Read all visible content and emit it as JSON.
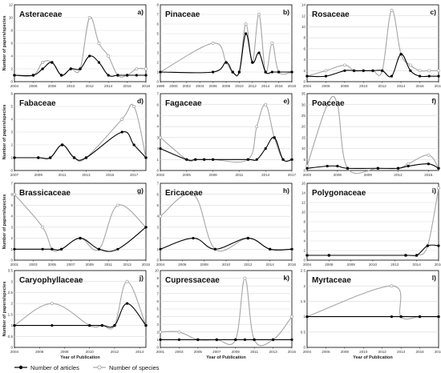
{
  "figure": {
    "xlabel": "Year of Publication",
    "ylabel": "Number of papers/species",
    "series_styles": [
      {
        "key": "articles",
        "name": "Number of articles",
        "color": "#000000",
        "marker": "filled-circle"
      },
      {
        "key": "species",
        "name": "Number of species",
        "color": "#a6a6a6",
        "marker": "hollow-circle"
      }
    ],
    "legend_position": "bottom-left"
  },
  "chart_data": [
    {
      "type": "line",
      "title": "Asteraceae",
      "letter": "a)",
      "xlim": [
        2004,
        2018
      ],
      "ylim": [
        0,
        12
      ],
      "yticks": [
        0,
        2,
        4,
        6,
        8,
        10,
        12
      ],
      "xticks": [
        2004,
        2006,
        2008,
        2010,
        2012,
        2014,
        2016,
        2018
      ],
      "grid": true,
      "series": [
        {
          "name": "Number of articles",
          "x": [
            2004,
            2006,
            2007,
            2008,
            2009,
            2010,
            2011,
            2012,
            2013,
            2014,
            2015,
            2016,
            2017,
            2018
          ],
          "y": [
            1,
            1,
            2,
            3,
            1,
            2,
            2,
            4,
            3,
            1,
            1,
            1,
            1,
            1
          ]
        },
        {
          "name": "Number of species",
          "x": [
            2004,
            2006,
            2007,
            2008,
            2009,
            2010,
            2011,
            2012,
            2013,
            2014,
            2015,
            2016,
            2017,
            2018
          ],
          "y": [
            1,
            1,
            3,
            3,
            1,
            2,
            2,
            10,
            6,
            4,
            1,
            1,
            2,
            2
          ]
        }
      ]
    },
    {
      "type": "line",
      "title": "Pinaceae",
      "letter": "b)",
      "xlim": [
        1998,
        2018
      ],
      "ylim": [
        0,
        8
      ],
      "yticks": [
        0,
        1,
        2,
        3,
        4,
        5,
        6,
        7,
        8
      ],
      "xticks": [
        1998,
        2000,
        2002,
        2004,
        2006,
        2008,
        2010,
        2012,
        2014,
        2016,
        2018
      ],
      "grid": true,
      "series": [
        {
          "name": "Number of articles",
          "x": [
            1998,
            2006,
            2008,
            2009,
            2010,
            2011,
            2012,
            2013,
            2014,
            2015,
            2016,
            2018
          ],
          "y": [
            1,
            1,
            2,
            1,
            1,
            5,
            2,
            3,
            1,
            1,
            1,
            1
          ]
        },
        {
          "name": "Number of species",
          "x": [
            1998,
            2006,
            2008,
            2009,
            2010,
            2011,
            2012,
            2013,
            2014,
            2015,
            2016,
            2018
          ],
          "y": [
            1,
            4,
            2,
            1,
            1,
            6,
            2,
            7,
            1,
            4,
            1,
            1
          ]
        }
      ]
    },
    {
      "type": "line",
      "title": "Rosaceae",
      "letter": "c)",
      "xlim": [
        2004,
        2018
      ],
      "ylim": [
        0,
        14
      ],
      "yticks": [
        0,
        2,
        4,
        6,
        8,
        10,
        12,
        14
      ],
      "xticks": [
        2004,
        2006,
        2008,
        2010,
        2012,
        2014,
        2016,
        2018
      ],
      "grid": true,
      "series": [
        {
          "name": "Number of articles",
          "x": [
            2004,
            2006,
            2008,
            2009,
            2010,
            2011,
            2012,
            2013,
            2014,
            2015,
            2016,
            2017,
            2018
          ],
          "y": [
            1,
            1,
            2,
            2,
            2,
            2,
            2,
            1,
            5,
            2,
            1,
            1,
            1
          ]
        },
        {
          "name": "Number of species",
          "x": [
            2004,
            2006,
            2008,
            2009,
            2010,
            2011,
            2012,
            2013,
            2014,
            2015,
            2016,
            2017,
            2018
          ],
          "y": [
            1,
            2,
            3,
            2,
            2,
            2,
            2,
            13,
            5,
            3,
            2,
            2,
            2
          ]
        }
      ]
    },
    {
      "type": "line",
      "title": "Fabaceae",
      "letter": "d)",
      "xlim": [
        2007,
        2018
      ],
      "ylim": [
        0,
        6
      ],
      "yticks": [
        0,
        1,
        2,
        3,
        4,
        5,
        6
      ],
      "xticks": [
        2007,
        2009,
        2011,
        2013,
        2015,
        2017
      ],
      "grid": true,
      "series": [
        {
          "name": "Number of articles",
          "x": [
            2007,
            2009,
            2010,
            2011,
            2012,
            2013,
            2016,
            2017,
            2018
          ],
          "y": [
            1,
            1,
            1,
            2,
            1,
            1,
            3,
            2,
            1
          ]
        },
        {
          "name": "Number of species",
          "x": [
            2007,
            2009,
            2010,
            2011,
            2012,
            2013,
            2016,
            2017,
            2018
          ],
          "y": [
            1,
            1,
            1,
            2,
            1,
            1,
            4,
            5,
            1
          ]
        }
      ]
    },
    {
      "type": "line",
      "title": "Fagaceae",
      "letter": "e)",
      "xlim": [
        2002,
        2017
      ],
      "ylim": [
        0,
        7
      ],
      "yticks": [
        0,
        1,
        2,
        3,
        4,
        5,
        6,
        7
      ],
      "xticks": [
        2002,
        2005,
        2008,
        2011,
        2014,
        2017
      ],
      "grid": true,
      "series": [
        {
          "name": "Number of articles",
          "x": [
            2002,
            2005,
            2006,
            2007,
            2008,
            2012,
            2013,
            2014,
            2015,
            2016,
            2017
          ],
          "y": [
            2,
            1,
            1,
            1,
            1,
            1,
            1,
            2,
            3,
            1,
            1
          ]
        },
        {
          "name": "Number of species",
          "x": [
            2002,
            2005,
            2006,
            2007,
            2008,
            2012,
            2013,
            2014,
            2015,
            2016,
            2017
          ],
          "y": [
            3,
            1,
            1,
            1,
            1,
            1,
            4,
            6,
            3,
            1,
            1
          ]
        }
      ]
    },
    {
      "type": "line",
      "title": "Poaceae",
      "letter": "f)",
      "xlim": [
        2003,
        2016
      ],
      "ylim": [
        0,
        35
      ],
      "yticks": [
        0,
        5,
        10,
        15,
        20,
        25,
        30,
        35
      ],
      "xticks": [
        2003,
        2006,
        2009,
        2012,
        2015
      ],
      "grid": true,
      "series": [
        {
          "name": "Number of articles",
          "x": [
            2003,
            2005,
            2006,
            2007,
            2010,
            2012,
            2013,
            2015,
            2016
          ],
          "y": [
            1,
            2,
            2,
            1,
            1,
            1,
            2,
            3,
            1
          ]
        },
        {
          "name": "Number of species",
          "x": [
            2003,
            2005,
            2006,
            2007,
            2010,
            2012,
            2013,
            2015,
            2016
          ],
          "y": [
            2,
            30,
            30,
            1,
            1,
            1,
            3,
            7,
            1
          ]
        }
      ]
    },
    {
      "type": "line",
      "title": "Brassicaceae",
      "letter": "g)",
      "xlim": [
        2001,
        2015
      ],
      "ylim": [
        0,
        7
      ],
      "yticks": [
        0,
        1,
        2,
        3,
        4,
        5,
        6,
        7
      ],
      "xticks": [
        2001,
        2003,
        2005,
        2007,
        2009,
        2011,
        2013,
        2015
      ],
      "grid": true,
      "series": [
        {
          "name": "Number of articles",
          "x": [
            2001,
            2004,
            2005,
            2006,
            2008,
            2010,
            2012,
            2015
          ],
          "y": [
            1,
            1,
            1,
            1,
            2,
            1,
            1,
            3
          ]
        },
        {
          "name": "Number of species",
          "x": [
            2001,
            2004,
            2005,
            2006,
            2008,
            2010,
            2012,
            2015
          ],
          "y": [
            6,
            3,
            1,
            1,
            2,
            1,
            5,
            3
          ]
        }
      ]
    },
    {
      "type": "line",
      "title": "Ericaceae",
      "letter": "h)",
      "xlim": [
        2004,
        2016
      ],
      "ylim": [
        0,
        7
      ],
      "yticks": [
        0,
        1,
        2,
        3,
        4,
        5,
        6,
        7
      ],
      "xticks": [
        2004,
        2006,
        2008,
        2010,
        2012,
        2014,
        2016
      ],
      "grid": true,
      "series": [
        {
          "name": "Number of articles",
          "x": [
            2004,
            2007,
            2009,
            2012,
            2014,
            2016
          ],
          "y": [
            1,
            2,
            1,
            2,
            1,
            1
          ]
        },
        {
          "name": "Number of species",
          "x": [
            2004,
            2007,
            2009,
            2012,
            2014,
            2016
          ],
          "y": [
            4,
            6,
            1,
            2,
            1,
            1
          ]
        }
      ]
    },
    {
      "type": "line",
      "title": "Polygonaceae",
      "letter": "i)",
      "xlim": [
        2004,
        2016
      ],
      "ylim": [
        0,
        16
      ],
      "yticks": [
        0,
        2,
        4,
        6,
        8,
        10,
        12,
        14,
        16
      ],
      "xticks": [
        2004,
        2006,
        2008,
        2010,
        2012,
        2014,
        2016
      ],
      "grid": true,
      "series": [
        {
          "name": "Number of articles",
          "x": [
            2004,
            2006,
            2013,
            2014,
            2015,
            2016
          ],
          "y": [
            1,
            1,
            1,
            1,
            3,
            3
          ]
        },
        {
          "name": "Number of species",
          "x": [
            2004,
            2006,
            2013,
            2014,
            2015,
            2016
          ],
          "y": [
            1,
            1,
            1,
            1,
            3,
            15
          ]
        }
      ]
    },
    {
      "type": "line",
      "title": "Caryophyllaceae",
      "letter": "j)",
      "xlim": [
        2004,
        2014.5
      ],
      "ylim": [
        0,
        3.5
      ],
      "yticks": [
        0,
        0.5,
        1,
        1.5,
        2,
        2.5,
        3,
        3.5
      ],
      "xticks": [
        2004,
        2006,
        2008,
        2010,
        2012,
        2014
      ],
      "grid": true,
      "series": [
        {
          "name": "Number of articles",
          "x": [
            2004,
            2007,
            2010,
            2011,
            2012,
            2013,
            2014.5
          ],
          "y": [
            1,
            1,
            1,
            1,
            1,
            2,
            1
          ]
        },
        {
          "name": "Number of species",
          "x": [
            2004,
            2007,
            2010,
            2011,
            2012,
            2013,
            2014.5
          ],
          "y": [
            1,
            2,
            1,
            1,
            1,
            3,
            1
          ]
        }
      ]
    },
    {
      "type": "line",
      "title": "Cupressaceae",
      "letter": "k)",
      "xlim": [
        2001,
        2015
      ],
      "ylim": [
        0,
        10
      ],
      "yticks": [
        0,
        1,
        2,
        3,
        4,
        5,
        6,
        7,
        8,
        9,
        10
      ],
      "xticks": [
        2001,
        2003,
        2005,
        2007,
        2009,
        2011,
        2013,
        2015
      ],
      "grid": true,
      "series": [
        {
          "name": "Number of articles",
          "x": [
            2001,
            2003,
            2005,
            2007,
            2009,
            2010,
            2011,
            2013,
            2015
          ],
          "y": [
            1,
            1,
            1,
            1,
            1,
            1,
            1,
            1,
            1
          ]
        },
        {
          "name": "Number of species",
          "x": [
            2001,
            2003,
            2005,
            2007,
            2009,
            2010,
            2011,
            2013,
            2015
          ],
          "y": [
            2,
            2,
            1,
            1,
            1,
            9,
            1,
            1,
            4
          ]
        }
      ]
    },
    {
      "type": "line",
      "title": "Myrtaceae",
      "letter": "l)",
      "xlim": [
        2004,
        2018
      ],
      "ylim": [
        0,
        2.5
      ],
      "yticks": [
        0,
        0.5,
        1,
        1.5,
        2,
        2.5
      ],
      "xticks": [
        2004,
        2006,
        2008,
        2010,
        2012,
        2014,
        2016,
        2018
      ],
      "grid": true,
      "series": [
        {
          "name": "Number of articles",
          "x": [
            2004,
            2013,
            2014,
            2016,
            2018
          ],
          "y": [
            1,
            1,
            1,
            1,
            1
          ]
        },
        {
          "name": "Number of species",
          "x": [
            2004,
            2013,
            2014,
            2016,
            2018
          ],
          "y": [
            1,
            2,
            1,
            1,
            1
          ]
        }
      ]
    }
  ]
}
